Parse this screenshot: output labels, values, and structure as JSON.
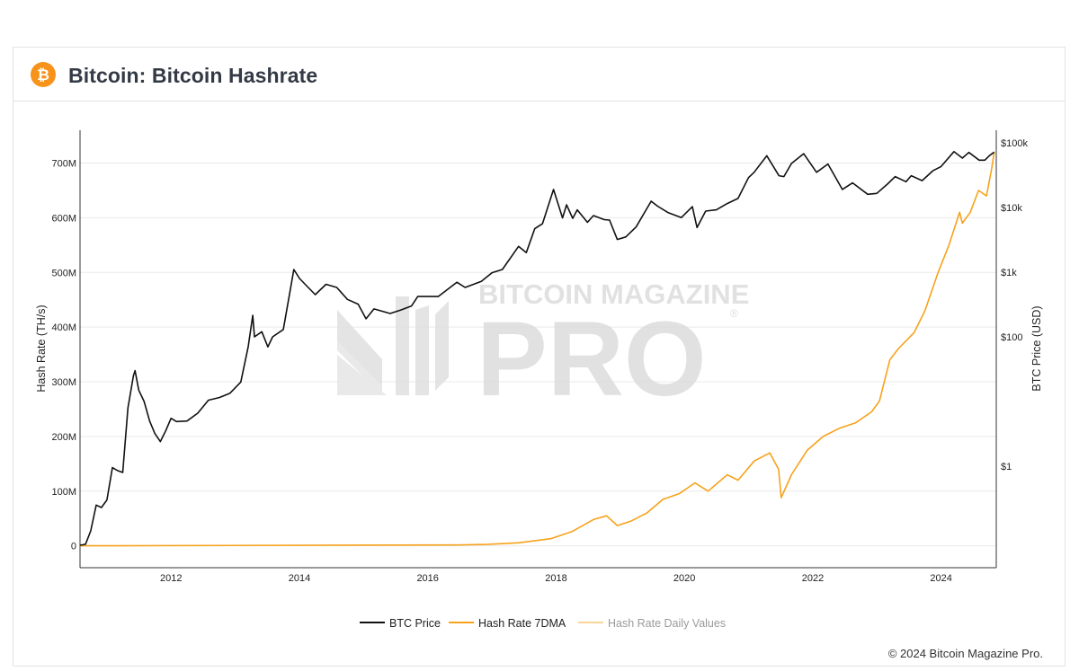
{
  "header": {
    "title": "Bitcoin: Bitcoin Hashrate",
    "logo_icon": "bitcoin-logo-icon"
  },
  "footer": {
    "copyright": "© 2024 Bitcoin Magazine Pro."
  },
  "watermark": {
    "line1": "BITCOIN MAGAZINE",
    "line2": "PRO",
    "mark": "®"
  },
  "colors": {
    "btc_price": "#111111",
    "hash_7dma": "#f7a21b",
    "hash_daily": "#f9d59c"
  },
  "chart_data": {
    "type": "line",
    "x_axis": {
      "type": "date",
      "range": [
        "2010-08-01",
        "2024-11-10"
      ],
      "tick_labels": [
        "2012",
        "2014",
        "2016",
        "2018",
        "2020",
        "2022",
        "2024"
      ]
    },
    "y_left": {
      "title": "Hash Rate (TH/s)",
      "range": [
        -40000000,
        760000000
      ],
      "tick_values": [
        0,
        100000000,
        200000000,
        300000000,
        400000000,
        500000000,
        600000000,
        700000000
      ],
      "tick_labels": [
        "0",
        "100M",
        "200M",
        "300M",
        "400M",
        "500M",
        "600M",
        "700M"
      ]
    },
    "y_right": {
      "title": "BTC Price (USD)",
      "scale": "log",
      "tick_values": [
        1,
        100,
        1000,
        10000,
        100000
      ],
      "tick_labels": [
        "$1",
        "$100",
        "$1k",
        "$10k",
        "$100k"
      ]
    },
    "grid": "horizontal",
    "legend_position": "bottom-center",
    "series": [
      {
        "name": "BTC Price",
        "axis": "right",
        "color": "#111111",
        "points": [
          [
            "2010-08-01",
            0.06
          ],
          [
            "2010-09-01",
            0.062
          ],
          [
            "2010-10-01",
            0.1
          ],
          [
            "2010-11-01",
            0.25
          ],
          [
            "2010-12-01",
            0.23
          ],
          [
            "2011-01-01",
            0.3
          ],
          [
            "2011-02-01",
            0.95
          ],
          [
            "2011-03-01",
            0.86
          ],
          [
            "2011-04-01",
            0.8
          ],
          [
            "2011-05-01",
            8
          ],
          [
            "2011-06-01",
            25
          ],
          [
            "2011-06-10",
            30
          ],
          [
            "2011-07-01",
            15
          ],
          [
            "2011-08-01",
            10
          ],
          [
            "2011-09-01",
            5
          ],
          [
            "2011-10-01",
            3.2
          ],
          [
            "2011-11-01",
            2.4
          ],
          [
            "2011-12-01",
            3.5
          ],
          [
            "2012-01-01",
            5.5
          ],
          [
            "2012-02-01",
            4.9
          ],
          [
            "2012-04-01",
            5
          ],
          [
            "2012-06-01",
            6.6
          ],
          [
            "2012-08-01",
            10.5
          ],
          [
            "2012-10-01",
            11.5
          ],
          [
            "2012-12-01",
            13.4
          ],
          [
            "2013-02-01",
            20
          ],
          [
            "2013-03-15",
            70
          ],
          [
            "2013-04-10",
            215
          ],
          [
            "2013-04-20",
            100
          ],
          [
            "2013-06-01",
            120
          ],
          [
            "2013-07-05",
            70
          ],
          [
            "2013-08-01",
            100
          ],
          [
            "2013-10-01",
            130
          ],
          [
            "2013-11-30",
            1100
          ],
          [
            "2014-01-01",
            800
          ],
          [
            "2014-02-15",
            600
          ],
          [
            "2014-04-01",
            450
          ],
          [
            "2014-06-01",
            650
          ],
          [
            "2014-08-01",
            580
          ],
          [
            "2014-10-01",
            380
          ],
          [
            "2014-12-01",
            320
          ],
          [
            "2015-01-15",
            190
          ],
          [
            "2015-03-01",
            270
          ],
          [
            "2015-06-01",
            230
          ],
          [
            "2015-08-01",
            260
          ],
          [
            "2015-10-01",
            300
          ],
          [
            "2015-11-05",
            420
          ],
          [
            "2015-12-01",
            420
          ],
          [
            "2016-03-01",
            420
          ],
          [
            "2016-06-15",
            700
          ],
          [
            "2016-08-01",
            580
          ],
          [
            "2016-11-01",
            720
          ],
          [
            "2017-01-01",
            980
          ],
          [
            "2017-03-01",
            1100
          ],
          [
            "2017-06-01",
            2500
          ],
          [
            "2017-07-15",
            2000
          ],
          [
            "2017-09-01",
            4700
          ],
          [
            "2017-10-15",
            5600
          ],
          [
            "2017-12-17",
            19000
          ],
          [
            "2018-02-06",
            6900
          ],
          [
            "2018-03-01",
            11000
          ],
          [
            "2018-04-05",
            6800
          ],
          [
            "2018-05-01",
            9200
          ],
          [
            "2018-06-28",
            5900
          ],
          [
            "2018-08-01",
            7500
          ],
          [
            "2018-10-01",
            6500
          ],
          [
            "2018-11-01",
            6400
          ],
          [
            "2018-12-15",
            3200
          ],
          [
            "2019-02-01",
            3500
          ],
          [
            "2019-04-01",
            5000
          ],
          [
            "2019-06-26",
            12500
          ],
          [
            "2019-08-01",
            10500
          ],
          [
            "2019-10-01",
            8300
          ],
          [
            "2019-12-15",
            7000
          ],
          [
            "2020-02-15",
            10300
          ],
          [
            "2020-03-13",
            4900
          ],
          [
            "2020-05-01",
            8800
          ],
          [
            "2020-07-01",
            9200
          ],
          [
            "2020-09-01",
            11500
          ],
          [
            "2020-11-01",
            13800
          ],
          [
            "2020-12-31",
            29000
          ],
          [
            "2021-02-01",
            35000
          ],
          [
            "2021-04-14",
            63000
          ],
          [
            "2021-06-22",
            31000
          ],
          [
            "2021-07-20",
            30000
          ],
          [
            "2021-09-01",
            48000
          ],
          [
            "2021-11-10",
            68000
          ],
          [
            "2022-01-22",
            35000
          ],
          [
            "2022-03-28",
            47000
          ],
          [
            "2022-06-18",
            19000
          ],
          [
            "2022-08-15",
            24000
          ],
          [
            "2022-11-09",
            16000
          ],
          [
            "2022-12-31",
            16500
          ],
          [
            "2023-03-01",
            23000
          ],
          [
            "2023-04-15",
            30000
          ],
          [
            "2023-06-15",
            25000
          ],
          [
            "2023-07-15",
            31000
          ],
          [
            "2023-09-15",
            26000
          ],
          [
            "2023-11-15",
            37000
          ],
          [
            "2024-01-01",
            43000
          ],
          [
            "2024-03-14",
            73000
          ],
          [
            "2024-05-01",
            58000
          ],
          [
            "2024-06-07",
            71000
          ],
          [
            "2024-08-05",
            54000
          ],
          [
            "2024-09-06",
            54000
          ],
          [
            "2024-10-01",
            63000
          ],
          [
            "2024-10-29",
            72000
          ]
        ]
      },
      {
        "name": "Hash Rate 7DMA",
        "axis": "left",
        "color": "#f7a21b",
        "points": [
          [
            "2010-08-01",
            0
          ],
          [
            "2016-06-01",
            1500000
          ],
          [
            "2016-12-01",
            2500000
          ],
          [
            "2017-06-01",
            5500000
          ],
          [
            "2017-12-01",
            13000000
          ],
          [
            "2018-04-01",
            26000000
          ],
          [
            "2018-08-01",
            48000000
          ],
          [
            "2018-10-15",
            55000000
          ],
          [
            "2018-12-15",
            37000000
          ],
          [
            "2019-03-01",
            45000000
          ],
          [
            "2019-06-01",
            60000000
          ],
          [
            "2019-09-01",
            85000000
          ],
          [
            "2019-12-01",
            95000000
          ],
          [
            "2020-03-01",
            115000000
          ],
          [
            "2020-05-15",
            100000000
          ],
          [
            "2020-09-01",
            130000000
          ],
          [
            "2020-11-01",
            120000000
          ],
          [
            "2021-02-01",
            155000000
          ],
          [
            "2021-05-01",
            170000000
          ],
          [
            "2021-06-20",
            140000000
          ],
          [
            "2021-07-05",
            88000000
          ],
          [
            "2021-09-01",
            130000000
          ],
          [
            "2021-12-01",
            175000000
          ],
          [
            "2022-03-01",
            200000000
          ],
          [
            "2022-06-01",
            215000000
          ],
          [
            "2022-09-01",
            225000000
          ],
          [
            "2022-12-01",
            245000000
          ],
          [
            "2023-01-15",
            265000000
          ],
          [
            "2023-03-15",
            340000000
          ],
          [
            "2023-05-01",
            360000000
          ],
          [
            "2023-08-01",
            390000000
          ],
          [
            "2023-10-01",
            430000000
          ],
          [
            "2023-12-15",
            500000000
          ],
          [
            "2024-02-15",
            550000000
          ],
          [
            "2024-04-15",
            610000000
          ],
          [
            "2024-05-01",
            590000000
          ],
          [
            "2024-06-15",
            610000000
          ],
          [
            "2024-08-01",
            650000000
          ],
          [
            "2024-09-15",
            640000000
          ],
          [
            "2024-10-15",
            690000000
          ],
          [
            "2024-10-29",
            720000000
          ]
        ]
      },
      {
        "name": "Hash Rate Daily Values",
        "axis": "left",
        "color": "#f9d59c",
        "visible": false
      }
    ]
  }
}
